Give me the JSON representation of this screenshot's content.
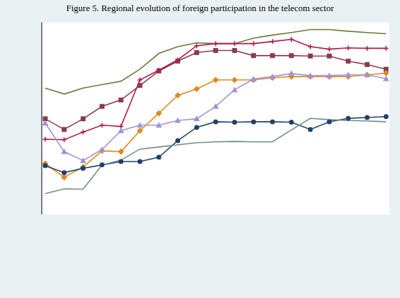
{
  "chart_data": {
    "type": "line",
    "title": "Figure 5. Regional evolution of foreign participation in the telecom sector",
    "categories": [
      null,
      null,
      null,
      null,
      null,
      null,
      null,
      null,
      null,
      null,
      null,
      null,
      null,
      null,
      null,
      null,
      null,
      null,
      null
    ],
    "ylim": [
      0,
      4.5
    ],
    "yticks": [
      0,
      1,
      2,
      3,
      4
    ],
    "grid": true,
    "tick_labels": false,
    "series": [
      {
        "color": "#667a36",
        "marker": "none",
        "values": [
          2.96,
          2.82,
          2.96,
          3.04,
          3.12,
          3.4,
          3.77,
          3.93,
          4.02,
          4.0,
          4.0,
          4.13,
          4.2,
          4.26,
          4.33,
          4.33,
          4.29,
          4.26,
          4.23
        ]
      },
      {
        "color": "#8b3a4f",
        "marker": "square",
        "values": [
          2.24,
          1.99,
          2.24,
          2.53,
          2.68,
          3.02,
          3.36,
          3.59,
          3.79,
          3.84,
          3.84,
          3.72,
          3.72,
          3.72,
          3.71,
          3.71,
          3.59,
          3.51,
          3.4
        ]
      },
      {
        "color": "#b3174a",
        "marker": "plus",
        "values": [
          1.76,
          1.75,
          1.93,
          2.09,
          2.06,
          3.15,
          3.38,
          3.62,
          3.95,
          4.0,
          4.0,
          4.0,
          4.05,
          4.1,
          3.93,
          3.87,
          3.9,
          3.89,
          3.89
        ]
      },
      {
        "color": "#e08a1e",
        "marker": "diamond",
        "values": [
          1.19,
          0.87,
          1.11,
          1.49,
          1.47,
          1.96,
          2.37,
          2.79,
          2.94,
          3.15,
          3.15,
          3.15,
          3.2,
          3.23,
          3.23,
          3.23,
          3.23,
          3.27,
          3.31
        ]
      },
      {
        "color": "#a093d6",
        "marker": "triangle",
        "values": [
          2.14,
          1.47,
          1.26,
          1.52,
          1.96,
          2.09,
          2.09,
          2.2,
          2.24,
          2.53,
          2.92,
          3.17,
          3.23,
          3.3,
          3.25,
          3.25,
          3.27,
          3.27,
          3.18
        ]
      },
      {
        "color": "#1f4068",
        "marker": "circle",
        "values": [
          1.14,
          0.98,
          1.08,
          1.16,
          1.24,
          1.24,
          1.34,
          1.73,
          2.04,
          2.17,
          2.16,
          2.17,
          2.17,
          2.16,
          1.99,
          2.17,
          2.25,
          2.27,
          2.29
        ]
      },
      {
        "color": "#6f8c88",
        "marker": "none",
        "values": [
          0.49,
          0.6,
          0.59,
          1.16,
          1.27,
          1.53,
          1.58,
          1.63,
          1.68,
          1.7,
          1.71,
          1.7,
          1.7,
          1.98,
          2.25,
          2.22,
          2.2,
          2.19,
          2.17
        ]
      }
    ]
  }
}
